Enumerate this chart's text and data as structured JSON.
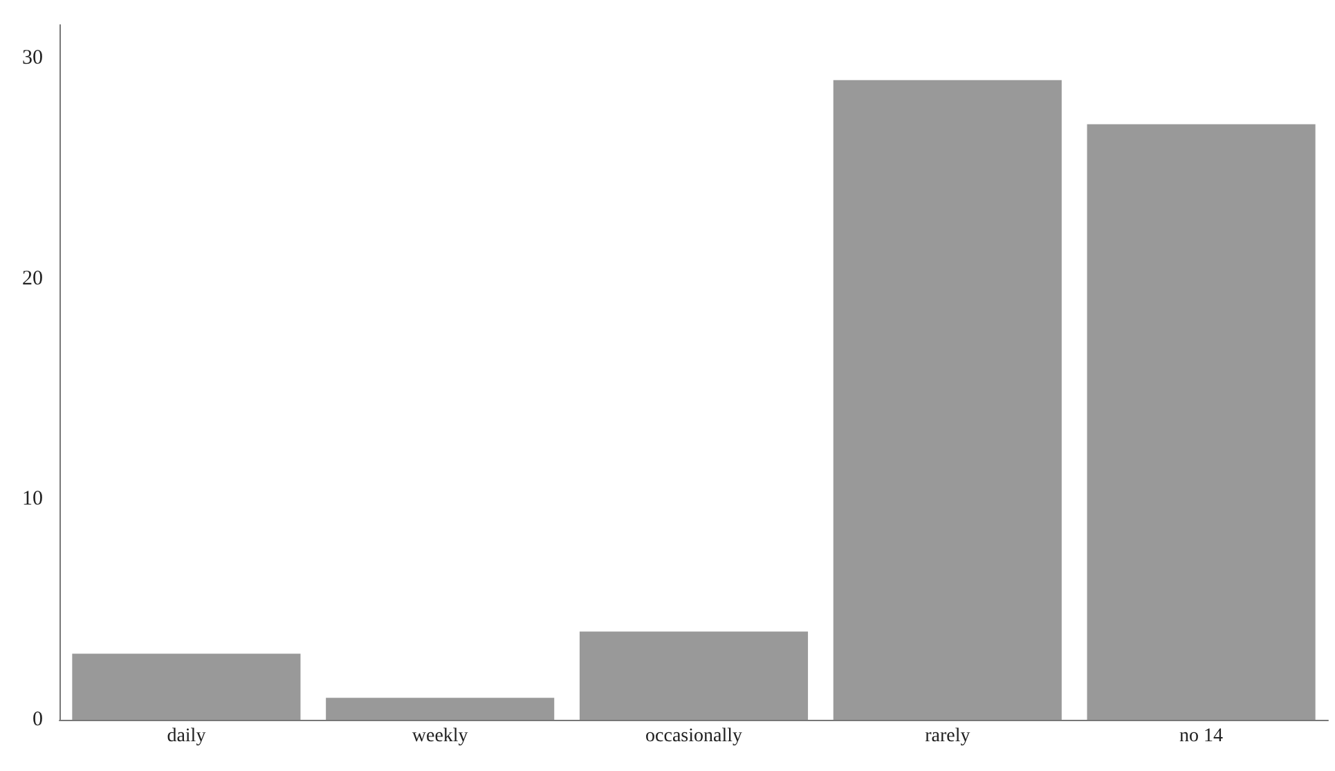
{
  "chart_data": {
    "type": "bar",
    "categories": [
      "daily",
      "weekly",
      "occasionally",
      "rarely",
      "no 14"
    ],
    "values": [
      3,
      1,
      4,
      29,
      27
    ],
    "color": "#999999",
    "ylim": [
      0,
      31.5
    ],
    "yticks": [
      0,
      10,
      20,
      30
    ],
    "grid": false
  }
}
